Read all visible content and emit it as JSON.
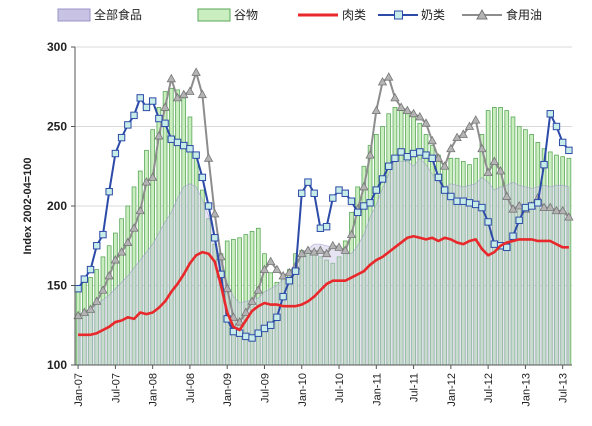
{
  "chart_data": {
    "type": "bar+line",
    "ylabel": "Index 2002-04=100",
    "ylim": [
      100,
      300
    ],
    "yticks": [
      100,
      150,
      200,
      250,
      300
    ],
    "xticks": [
      "Jan-07",
      "Jul-07",
      "Jan-08",
      "Jul-08",
      "Jan-09",
      "Jul-09",
      "Jan-10",
      "Jul-10",
      "Jan-11",
      "Jul-11",
      "Jan-12",
      "Jul-12",
      "Jan-13",
      "Jul-13"
    ],
    "x_start": "2007-01",
    "months": 80,
    "grid": true,
    "legend_position": "top",
    "series": [
      {
        "name": "全部食品",
        "style": "area",
        "color": "#c8c3e4",
        "stroke": "#9a94c8",
        "values": [
          130,
          132,
          135,
          138,
          141,
          144,
          148,
          152,
          156,
          161,
          166,
          171,
          176,
          183,
          190,
          196,
          205,
          212,
          214,
          212,
          204,
          194,
          180,
          164,
          152,
          143,
          139,
          140,
          141,
          142,
          146,
          148,
          150,
          154,
          155,
          160,
          171,
          173,
          176,
          176,
          175,
          174,
          172,
          170,
          170,
          175,
          182,
          193,
          201,
          211,
          220,
          230,
          228,
          228,
          225,
          230,
          226,
          220,
          215,
          212,
          214,
          213,
          212,
          213,
          214,
          218,
          215,
          210,
          212,
          213,
          215,
          213,
          212,
          211,
          212,
          213,
          212,
          213,
          213,
          212
        ]
      },
      {
        "name": "谷物",
        "style": "bar",
        "color": "#cbeec0",
        "stroke": "#5aa85a",
        "values": [
          148,
          152,
          155,
          160,
          168,
          175,
          183,
          192,
          200,
          212,
          222,
          235,
          248,
          262,
          272,
          274,
          273,
          268,
          256,
          232,
          210,
          192,
          176,
          170,
          178,
          179,
          180,
          182,
          184,
          186,
          170,
          158,
          152,
          155,
          160,
          170,
          172,
          171,
          170,
          168,
          166,
          164,
          168,
          178,
          196,
          212,
          225,
          238,
          245,
          250,
          258,
          262,
          260,
          258,
          256,
          252,
          245,
          238,
          232,
          226,
          230,
          230,
          228,
          226,
          230,
          245,
          260,
          262,
          262,
          260,
          256,
          250,
          248,
          245,
          240,
          236,
          234,
          232,
          231,
          230
        ]
      },
      {
        "name": "肉类",
        "style": "line",
        "color": "#e8282b",
        "values": [
          119,
          119,
          119,
          120,
          122,
          124,
          127,
          128,
          130,
          129,
          133,
          132,
          133,
          136,
          140,
          146,
          151,
          157,
          164,
          169,
          171,
          170,
          165,
          150,
          133,
          124,
          122,
          128,
          134,
          137,
          139,
          138,
          138,
          137,
          137,
          137,
          138,
          140,
          143,
          147,
          151,
          153,
          153,
          153,
          155,
          157,
          159,
          163,
          166,
          168,
          171,
          174,
          177,
          180,
          181,
          180,
          179,
          180,
          178,
          180,
          179,
          177,
          176,
          178,
          179,
          173,
          169,
          171,
          175,
          177,
          178,
          179,
          179,
          179,
          178,
          178,
          178,
          176,
          174,
          174
        ]
      },
      {
        "name": "奶类",
        "style": "line-marker",
        "color": "#2c4aa8",
        "marker_fill": "#c8ede8",
        "values": [
          148,
          154,
          160,
          175,
          182,
          209,
          233,
          243,
          251,
          257,
          268,
          262,
          266,
          255,
          252,
          242,
          240,
          238,
          236,
          232,
          218,
          200,
          180,
          157,
          129,
          121,
          120,
          118,
          117,
          120,
          123,
          125,
          130,
          143,
          153,
          159,
          208,
          215,
          208,
          186,
          187,
          205,
          210,
          208,
          203,
          196,
          200,
          202,
          210,
          217,
          225,
          230,
          234,
          231,
          233,
          234,
          232,
          230,
          218,
          210,
          206,
          203,
          203,
          202,
          201,
          199,
          190,
          176,
          175,
          174,
          181,
          191,
          199,
          200,
          202,
          226,
          258,
          250,
          240,
          235
        ]
      },
      {
        "name": "食用油",
        "style": "line-marker",
        "color": "#8d8d8d",
        "marker_fill": "#b4b4b4",
        "values": [
          131,
          133,
          135,
          140,
          147,
          156,
          166,
          171,
          177,
          186,
          197,
          215,
          218,
          244,
          262,
          280,
          268,
          270,
          272,
          284,
          270,
          230,
          195,
          168,
          148,
          130,
          127,
          133,
          140,
          147,
          160,
          165,
          160,
          156,
          158,
          162,
          170,
          172,
          171,
          172,
          170,
          175,
          174,
          172,
          182,
          198,
          212,
          232,
          260,
          278,
          281,
          268,
          262,
          260,
          258,
          256,
          252,
          241,
          230,
          225,
          236,
          243,
          245,
          250,
          254,
          236,
          221,
          228,
          222,
          206,
          198,
          200,
          198,
          200,
          205,
          199,
          199,
          197,
          197,
          193
        ]
      }
    ]
  }
}
